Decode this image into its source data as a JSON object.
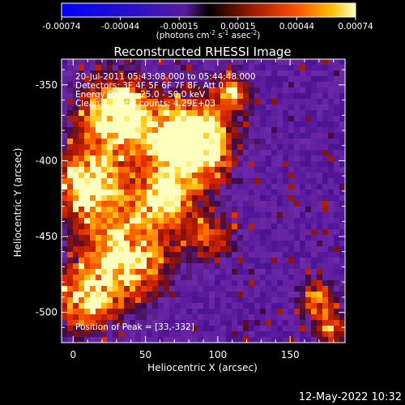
{
  "chart_data": {
    "type": "heatmap",
    "title": "Reconstructed RHESSI Image",
    "xlabel": "Heliocentric X (arcsec)",
    "ylabel": "Heliocentric Y (arcsec)",
    "xlim": [
      -8,
      188
    ],
    "ylim": [
      -520,
      -333
    ],
    "x_ticks": [
      0,
      50,
      100,
      150
    ],
    "y_ticks": [
      -350,
      -400,
      -450,
      -500
    ],
    "colorbar": {
      "ticks": [
        "-0.00074",
        "-0.00044",
        "-0.00015",
        "0.00015",
        "0.00044",
        "0.00074"
      ],
      "range": [
        -0.00074,
        0.00074
      ],
      "unit_prefix": "(photons cm",
      "unit_sup1": "-2",
      "unit_mid": " s",
      "unit_sup2": "-1",
      "unit_mid2": " asec",
      "unit_sup3": "-2",
      "unit_suffix": ")"
    },
    "annotations": {
      "time": "20-Jul-2011 05:43:08.000 to 05:44:48.000",
      "detectors": "Detectors: 3F 4F 5F 6F 7F 8F, Att 0",
      "energy": "Energy Range: 25.0 - 50.0 keV",
      "method": "Clean",
      "counts": "Total counts: 4.29E+03",
      "peak": "Position of Peak = [33,-332]"
    },
    "grid": false
  },
  "footer": {
    "timestamp": "12-May-2022 10:32"
  }
}
